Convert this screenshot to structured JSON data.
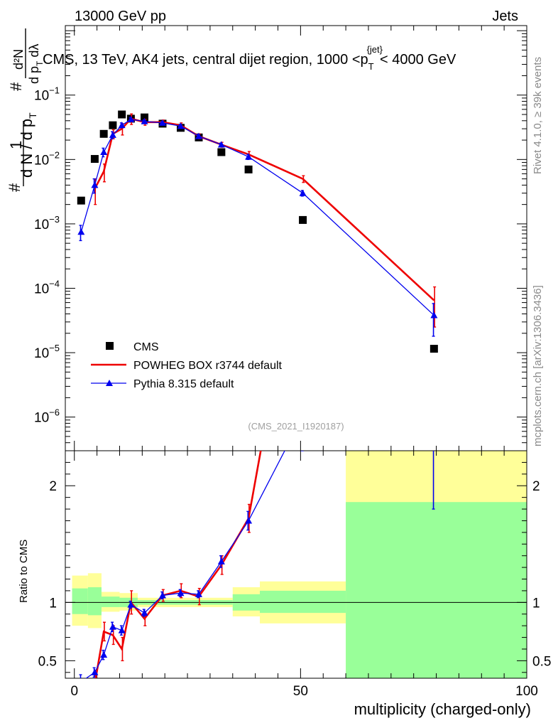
{
  "header": {
    "left": "13000 GeV pp",
    "right": "Jets"
  },
  "plot_title": {
    "main": "CMS, 13 TeV, AK4 jets, central dijet region, 1000 <p",
    "sub": "T",
    "sup": "{jet}",
    "tail": "< 4000 GeV"
  },
  "side_labels": {
    "rivet": "Rivet 4.1.0, ≥ 39k events",
    "mcplots": "mcplots.cern.ch [arXiv:1306.3436]"
  },
  "analysis_id": "(CMS_2021_I1920187)",
  "y_axis": {
    "one": "1",
    "hash": "#",
    "denominator": "d N / d p",
    "denominator_sub": "T",
    "numerator": "d²N",
    "numerator_den": "d p",
    "numerator_den_sub": "T",
    "numerator_den_tail": " dλ"
  },
  "ratio_ylabel": "Ratio to CMS",
  "x_label": "multiplicity (charged-only)",
  "main_ticks": [
    {
      "exp": -1,
      "label": "10",
      "sup": "−1"
    },
    {
      "exp": -2,
      "label": "10",
      "sup": "−2"
    },
    {
      "exp": -3,
      "label": "10",
      "sup": "−3"
    },
    {
      "exp": -4,
      "label": "10",
      "sup": "−4"
    },
    {
      "exp": -5,
      "label": "10",
      "sup": "−5"
    },
    {
      "exp": -6,
      "label": "10",
      "sup": "−6"
    }
  ],
  "ratio_ticks": [
    {
      "v": 0.5,
      "label": "0.5"
    },
    {
      "v": 1,
      "label": "1"
    },
    {
      "v": 2,
      "label": "2"
    }
  ],
  "x_ticks": [
    {
      "v": 0,
      "label": "0"
    },
    {
      "v": 50,
      "label": "50"
    },
    {
      "v": 100,
      "label": "100"
    }
  ],
  "legend": [
    {
      "label": "CMS",
      "kind": "square",
      "color": "#000000"
    },
    {
      "label": "POWHEG BOX r3744 default",
      "kind": "line",
      "color": "#ee0000"
    },
    {
      "label": "Pythia 8.315 default",
      "kind": "triangle",
      "color": "#0000ee"
    }
  ],
  "chart_data": {
    "type": "scatter",
    "title": "CMS, 13 TeV, AK4 jets, central dijet region, 1000 < pT{jet} < 4000 GeV",
    "xlabel": "multiplicity (charged-only)",
    "ylabel": "1/N dN/dlambda",
    "xlim": [
      -2,
      100
    ],
    "ylim_log": [
      3e-07,
      1.2
    ],
    "ratio_ylim": [
      0.35,
      2.3
    ],
    "x": [
      1.5,
      4.5,
      6.5,
      8.5,
      10.5,
      12.5,
      15.5,
      19.5,
      23.5,
      27.5,
      32.5,
      38.5,
      50.5,
      79.5
    ],
    "series": [
      {
        "name": "CMS",
        "color": "#000000",
        "values": [
          0.0023,
          0.0102,
          0.025,
          0.034,
          0.05,
          0.043,
          0.045,
          0.036,
          0.031,
          0.022,
          0.013,
          0.007,
          0.00115,
          1.15e-05
        ]
      },
      {
        "name": "POWHEG BOX r3744 default",
        "color": "#ee0000",
        "values": [
          null,
          0.0035,
          0.0065,
          0.025,
          0.03,
          0.043,
          0.038,
          0.038,
          0.034,
          0.023,
          0.017,
          0.012,
          0.005,
          6.5e-05
        ],
        "errors": [
          null,
          0.0015,
          0.002,
          0.004,
          0.006,
          0.008,
          0.004,
          0.003,
          0.003,
          0.002,
          0.0015,
          0.0013,
          0.0006,
          4e-05
        ],
        "ratio": [
          null,
          0.3,
          0.75,
          0.72,
          0.6,
          1.0,
          0.86,
          1.06,
          1.1,
          1.05,
          1.32,
          1.72,
          4.3,
          5.6
        ],
        "ratio_errors": [
          null,
          0.1,
          0.08,
          0.08,
          0.1,
          0.1,
          0.06,
          0.05,
          0.06,
          0.07,
          0.08,
          0.12,
          0.5,
          3.0
        ]
      },
      {
        "name": "Pythia 8.315 default",
        "color": "#0000ee",
        "values": [
          0.00075,
          0.004,
          0.013,
          0.024,
          0.034,
          0.042,
          0.039,
          0.037,
          0.033,
          0.023,
          0.017,
          0.011,
          0.003,
          3.8e-05
        ],
        "errors": [
          0.0002,
          0.001,
          0.002,
          0.003,
          0.003,
          0.003,
          0.002,
          0.002,
          0.002,
          0.0015,
          0.001,
          0.001,
          0.0003,
          2e-05
        ],
        "ratio": [
          0.32,
          0.4,
          0.55,
          0.79,
          0.76,
          0.98,
          0.91,
          1.06,
          1.08,
          1.07,
          1.35,
          1.7,
          2.6,
          3.3
        ],
        "ratio_errors": [
          0.06,
          0.04,
          0.04,
          0.04,
          0.04,
          0.03,
          0.03,
          0.03,
          0.03,
          0.03,
          0.05,
          0.08,
          0.3,
          1.5
        ]
      }
    ],
    "ratio_bands": [
      {
        "x0": -0.5,
        "x1": 3,
        "yellow": [
          0.8,
          1.23
        ],
        "green": [
          0.9,
          1.12
        ]
      },
      {
        "x0": 3,
        "x1": 6,
        "yellow": [
          0.78,
          1.25
        ],
        "green": [
          0.89,
          1.13
        ]
      },
      {
        "x0": 6,
        "x1": 10,
        "yellow": [
          0.92,
          1.09
        ],
        "green": [
          0.96,
          1.05
        ]
      },
      {
        "x0": 10,
        "x1": 14,
        "yellow": [
          0.93,
          1.08
        ],
        "green": [
          0.96,
          1.04
        ]
      },
      {
        "x0": 14,
        "x1": 35,
        "yellow": [
          0.96,
          1.04
        ],
        "green": [
          0.98,
          1.02
        ]
      },
      {
        "x0": 35,
        "x1": 41,
        "yellow": [
          0.88,
          1.13
        ],
        "green": [
          0.93,
          1.07
        ]
      },
      {
        "x0": 41,
        "x1": 60,
        "yellow": [
          0.82,
          1.18
        ],
        "green": [
          0.91,
          1.1
        ]
      },
      {
        "x0": 60,
        "x1": 100,
        "yellow": [
          0.0,
          3.0
        ],
        "green": [
          0.0,
          1.86
        ]
      }
    ]
  }
}
